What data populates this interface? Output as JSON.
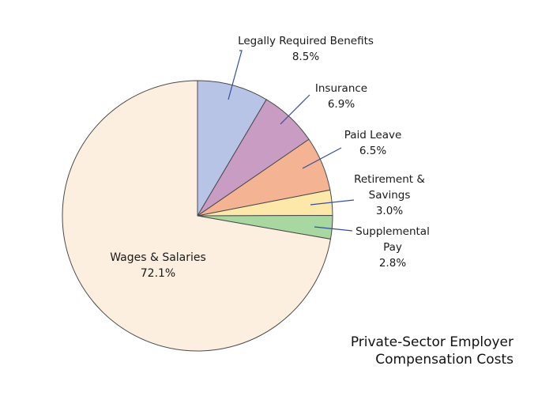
{
  "chart_data": {
    "type": "pie",
    "title_lines": [
      "Private-Sector Employer",
      "Compensation Costs"
    ],
    "slices": [
      {
        "name": "Wages & Salaries",
        "label_lines": [
          "Wages & Salaries"
        ],
        "value": 72.1,
        "value_label": "72.1%",
        "color": "#fdefe0"
      },
      {
        "name": "Legally Required Benefits",
        "label_lines": [
          "Legally Required Benefits"
        ],
        "value": 8.5,
        "value_label": "8.5%",
        "color": "#b8c4e6"
      },
      {
        "name": "Insurance",
        "label_lines": [
          "Insurance"
        ],
        "value": 6.9,
        "value_label": "6.9%",
        "color": "#c99cc4"
      },
      {
        "name": "Paid Leave",
        "label_lines": [
          "Paid Leave"
        ],
        "value": 6.5,
        "value_label": "6.5%",
        "color": "#f4b393"
      },
      {
        "name": "Retirement & Savings",
        "label_lines": [
          "Retirement &",
          "Savings"
        ],
        "value": 3.0,
        "value_label": "3.0%",
        "color": "#fde8a9"
      },
      {
        "name": "Supplemental Pay",
        "label_lines": [
          "Supplemental",
          "Pay"
        ],
        "value": 2.8,
        "value_label": "2.8%",
        "color": "#a8d8a0"
      }
    ]
  }
}
